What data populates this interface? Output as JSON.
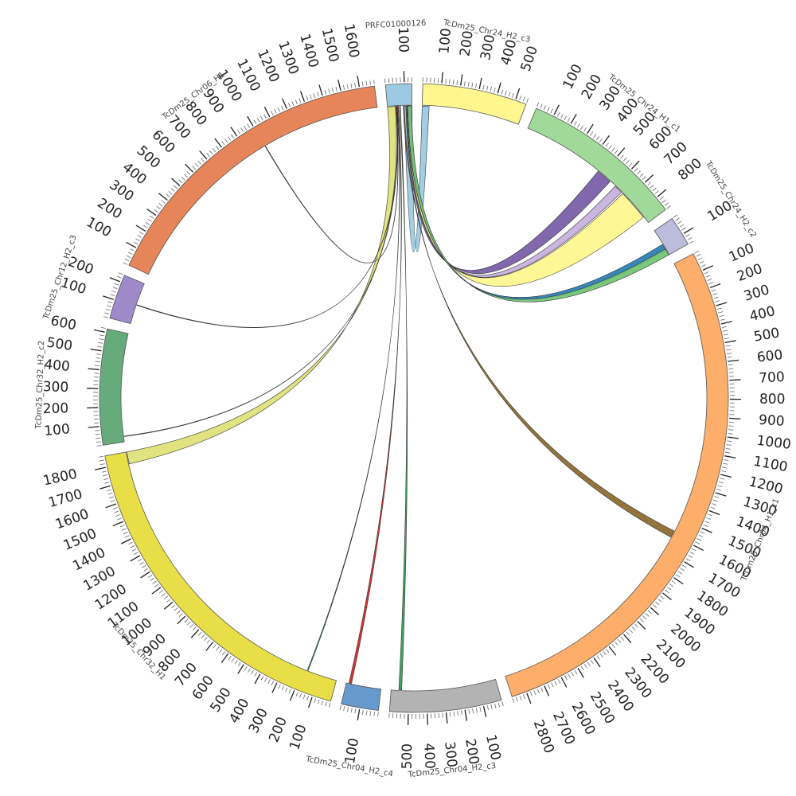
{
  "figure": {
    "type": "circos",
    "total_units": 12500
  },
  "segments": [
    {
      "id": "prfc",
      "name": "PRFC01000126",
      "length": 140,
      "color": "#9ecae1",
      "ticks": [
        100
      ]
    },
    {
      "id": "chr24_h2_c3",
      "name": "TcDm25_Chr24_H2_c3",
      "length": 560,
      "color": "#fff68f",
      "ticks": [
        100,
        200,
        300,
        400,
        500
      ]
    },
    {
      "id": "chr24_h1_c1",
      "name": "TcDm25_Chr24_H1_c1",
      "length": 880,
      "color": "#a1d99b",
      "ticks": [
        100,
        200,
        300,
        400,
        500,
        600,
        700,
        800
      ]
    },
    {
      "id": "chr24_h2_c2",
      "name": "TcDm25_Chr24_H2_c2",
      "length": 160,
      "color": "#bcbddc",
      "ticks": [
        100
      ]
    },
    {
      "id": "chr04_h1_c1",
      "name": "TcDm25_Chr04_H1_c1",
      "length": 2880,
      "color": "#fdae6b",
      "ticks": [
        100,
        200,
        300,
        400,
        500,
        600,
        700,
        800,
        900,
        1000,
        1100,
        1200,
        1300,
        1400,
        1500,
        1600,
        1700,
        1800,
        1900,
        2000,
        2100,
        2200,
        2300,
        2400,
        2500,
        2600,
        2700,
        2800
      ]
    },
    {
      "id": "chr04_h2_c3",
      "name": "TcDm25_Chr04_H2_c3",
      "length": 600,
      "color": "#b3b3b3",
      "ticks": [
        100,
        200,
        300,
        400,
        500
      ]
    },
    {
      "id": "chr04_h2_c4",
      "name": "TcDm25_Chr04_H2_c4",
      "length": 200,
      "color": "#6699cc",
      "ticks": [
        100
      ]
    },
    {
      "id": "chr32_h1",
      "name": "TcDm25_Chr32_H1",
      "length": 1860,
      "color": "#e8de48",
      "ticks": [
        100,
        200,
        300,
        400,
        500,
        600,
        700,
        800,
        900,
        1000,
        1100,
        1200,
        1300,
        1400,
        1500,
        1600,
        1700,
        1800
      ]
    },
    {
      "id": "chr32_h2_c2",
      "name": "TcDm25_Chr32_H2_c2",
      "length": 620,
      "color": "#66ab7c",
      "ticks": [
        100,
        200,
        300,
        400,
        500,
        600
      ]
    },
    {
      "id": "chr12_h2_c3",
      "name": "TcDm25_Chr12_H2_c3",
      "length": 240,
      "color": "#9e8ac8",
      "ticks": [
        100,
        200
      ]
    },
    {
      "id": "chr06_h1",
      "name": "TcDm25_Chr06_H1",
      "length": 1680,
      "color": "#e6855a",
      "ticks": [
        100,
        200,
        300,
        400,
        500,
        600,
        700,
        800,
        900,
        1000,
        1100,
        1200,
        1300,
        1400,
        1500,
        1600
      ]
    }
  ],
  "links": [
    {
      "from": "prfc",
      "from_start": 0,
      "from_end": 45,
      "to": "chr32_h1",
      "to_start": 1790,
      "to_end": 1860,
      "color": "#dfe27a"
    },
    {
      "from": "prfc",
      "from_start": 95,
      "from_end": 140,
      "to": "chr24_h2_c3",
      "to_start": 0,
      "to_end": 40,
      "color": "#9ecae1"
    },
    {
      "from": "prfc",
      "from_start": 105,
      "from_end": 125,
      "to": "chr24_h1_c1",
      "to_start": 470,
      "to_end": 560,
      "color": "#7a5fa8"
    },
    {
      "from": "prfc",
      "from_start": 110,
      "from_end": 130,
      "to": "chr24_h1_c1",
      "to_start": 600,
      "to_end": 650,
      "color": "#c7b2dd"
    },
    {
      "from": "prfc",
      "from_start": 112,
      "from_end": 130,
      "to": "chr24_h1_c1",
      "to_start": 660,
      "to_end": 840,
      "color": "#fff68f"
    },
    {
      "from": "prfc",
      "from_start": 115,
      "from_end": 135,
      "to": "chr24_h2_c2",
      "to_start": 90,
      "to_end": 130,
      "color": "#2c7fb8"
    },
    {
      "from": "prfc",
      "from_start": 116,
      "from_end": 138,
      "to": "chr24_h2_c2",
      "to_start": 120,
      "to_end": 160,
      "color": "#74c476"
    },
    {
      "from": "prfc",
      "from_start": 90,
      "from_end": 96,
      "to": "chr04_h1_c1",
      "to_start": 1580,
      "to_end": 1620,
      "color": "#8c6d31"
    },
    {
      "from": "prfc",
      "from_start": 70,
      "from_end": 74,
      "to": "chr04_h2_c3",
      "to_start": 540,
      "to_end": 556,
      "color": "#31a354"
    },
    {
      "from": "prfc",
      "from_start": 60,
      "from_end": 64,
      "to": "chr04_h2_c4",
      "to_start": 170,
      "to_end": 185,
      "color": "#d62728"
    },
    {
      "from": "prfc",
      "from_start": 55,
      "from_end": 57,
      "to": "chr32_h1",
      "to_start": 170,
      "to_end": 175,
      "color": "#2ca25f"
    },
    {
      "from": "prfc",
      "from_start": 52,
      "from_end": 54,
      "to": "chr32_h2_c2",
      "to_start": 30,
      "to_end": 33,
      "color": "#7f7f7f"
    },
    {
      "from": "prfc",
      "from_start": 50,
      "from_end": 52,
      "to": "chr12_h2_c3",
      "to_start": 110,
      "to_end": 113,
      "color": "#e6855a"
    },
    {
      "from": "prfc",
      "from_start": 48,
      "from_end": 50,
      "to": "chr06_h1",
      "to_start": 1000,
      "to_end": 1003,
      "color": "#555555"
    }
  ]
}
